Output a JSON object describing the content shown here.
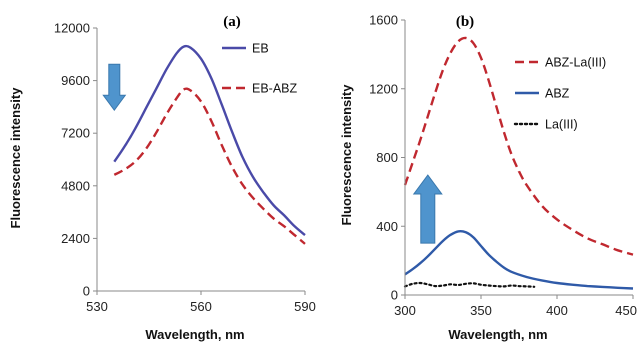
{
  "chart_data": [
    {
      "type": "line",
      "panel_label": "(a)",
      "xlabel": "Wavelength, nm",
      "ylabel": "Fluorescence intensity",
      "xlim": [
        530,
        590
      ],
      "ylim": [
        0,
        12000
      ],
      "xticks": [
        530,
        560,
        590
      ],
      "yticks": [
        0,
        2400,
        4800,
        7200,
        9600,
        12000
      ],
      "grid": false,
      "legend_position": "top-right",
      "arrow": {
        "direction": "down",
        "at": [
          535,
          9300
        ],
        "color": "#4f94cd"
      },
      "series": [
        {
          "name": "EB",
          "color": "#4a4aa8",
          "dash": "solid",
          "x": [
            535,
            538,
            541,
            544,
            547,
            550,
            553,
            555,
            557,
            560,
            563,
            566,
            569,
            572,
            575,
            578,
            581,
            584,
            587,
            590
          ],
          "y": [
            5900,
            6600,
            7400,
            8300,
            9200,
            10100,
            10850,
            11150,
            11100,
            10600,
            9700,
            8500,
            7250,
            6100,
            5200,
            4500,
            3900,
            3450,
            2950,
            2550
          ]
        },
        {
          "name": "EB-ABZ",
          "color": "#c0282f",
          "dash": "dashed",
          "x": [
            535,
            538,
            541,
            544,
            547,
            550,
            553,
            555,
            557,
            560,
            563,
            566,
            569,
            572,
            575,
            578,
            581,
            584,
            587,
            590
          ],
          "y": [
            5300,
            5550,
            5900,
            6450,
            7200,
            8050,
            8800,
            9200,
            9150,
            8650,
            7750,
            6650,
            5650,
            4850,
            4250,
            3750,
            3300,
            2950,
            2550,
            2150
          ]
        }
      ]
    },
    {
      "type": "line",
      "panel_label": "(b)",
      "xlabel": "Wavelength, nm",
      "ylabel": "Fluorescence intensity",
      "xlim": [
        300,
        450
      ],
      "ylim": [
        0,
        1600
      ],
      "xticks": [
        300,
        350,
        400,
        450
      ],
      "yticks": [
        0,
        400,
        800,
        1200,
        1600
      ],
      "grid": false,
      "legend_position": "top-right",
      "arrow": {
        "direction": "up",
        "at": [
          315,
          500
        ],
        "color": "#4f94cd"
      },
      "series": [
        {
          "name": "ABZ-La(III)",
          "color": "#c0282f",
          "dash": "dashed",
          "x": [
            300,
            305,
            310,
            315,
            320,
            325,
            330,
            335,
            340,
            345,
            350,
            355,
            360,
            365,
            370,
            375,
            380,
            390,
            400,
            410,
            420,
            430,
            440,
            450
          ],
          "y": [
            640,
            770,
            900,
            1040,
            1180,
            1310,
            1410,
            1475,
            1495,
            1465,
            1380,
            1250,
            1100,
            950,
            820,
            720,
            640,
            520,
            440,
            380,
            330,
            295,
            260,
            235
          ]
        },
        {
          "name": "ABZ",
          "color": "#2f5aa8",
          "dash": "solid",
          "x": [
            300,
            305,
            310,
            315,
            320,
            325,
            330,
            335,
            340,
            345,
            350,
            355,
            360,
            365,
            370,
            380,
            390,
            400,
            410,
            420,
            430,
            440,
            450
          ],
          "y": [
            120,
            150,
            185,
            225,
            270,
            315,
            350,
            370,
            365,
            335,
            285,
            235,
            195,
            160,
            135,
            105,
            85,
            70,
            60,
            52,
            47,
            42,
            38
          ]
        },
        {
          "name": "La(III)",
          "color": "#111111",
          "dash": "dotted",
          "x": [
            300,
            305,
            310,
            315,
            320,
            325,
            330,
            335,
            340,
            345,
            350,
            355,
            360,
            365,
            370,
            375,
            380,
            385
          ],
          "y": [
            50,
            65,
            70,
            62,
            52,
            55,
            62,
            58,
            65,
            68,
            60,
            55,
            52,
            50,
            55,
            52,
            50,
            48
          ]
        }
      ]
    }
  ]
}
